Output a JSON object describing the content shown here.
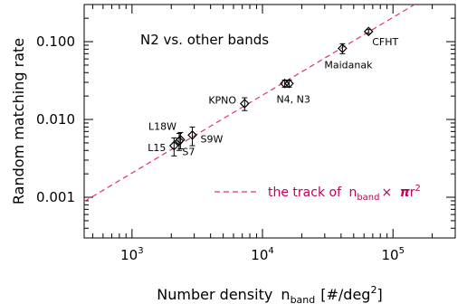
{
  "chart_data": {
    "type": "scatter",
    "title": "N2 vs. other bands",
    "xlabel": "Number density",
    "xlabel_sub": "band",
    "xlabel_unit_pre": "[#/deg",
    "xlabel_unit_sup": "2",
    "xlabel_unit_post": "]",
    "ylabel": "Random matching rate",
    "x_scale": "log",
    "y_scale": "log",
    "xlim": [
      430,
      300000
    ],
    "ylim": [
      0.0003,
      0.3
    ],
    "x_ticks": [
      {
        "value": 1000,
        "base": "10",
        "exp": "3"
      },
      {
        "value": 10000,
        "base": "10",
        "exp": "4"
      },
      {
        "value": 100000,
        "base": "10",
        "exp": "5"
      }
    ],
    "y_ticks": [
      {
        "value": 0.001,
        "label": "0.001"
      },
      {
        "value": 0.01,
        "label": "0.010"
      },
      {
        "value": 0.1,
        "label": "0.100"
      }
    ],
    "points": [
      {
        "label": "CFHT",
        "x": 65000,
        "y": 0.135,
        "yerr": 0.008
      },
      {
        "label": "Maidanak",
        "x": 41000,
        "y": 0.082,
        "yerr": 0.012
      },
      {
        "label": "",
        "x": 14800,
        "y": 0.029,
        "yerr": 0.003
      },
      {
        "label": "N4, N3",
        "x": 16000,
        "y": 0.029,
        "yerr": 0.003
      },
      {
        "label": "KPNO",
        "x": 7300,
        "y": 0.016,
        "yerr": 0.003
      },
      {
        "label": "S9W",
        "x": 2900,
        "y": 0.0063,
        "yerr": 0.0017
      },
      {
        "label": "L18W",
        "x": 2300,
        "y": 0.0053,
        "yerr": 0.0013
      },
      {
        "label": "S7",
        "x": 2350,
        "y": 0.0055,
        "yerr": 0.0013
      },
      {
        "label": "L15",
        "x": 2100,
        "y": 0.0046,
        "yerr": 0.0012
      }
    ],
    "trend_line": {
      "legend": "the track of",
      "legend_var": "n",
      "legend_sub": "band",
      "legend_times": "×",
      "legend_pi": "π",
      "legend_r": "r",
      "legend_sup": "2",
      "color": "#e0307f",
      "slope": 1.0,
      "x_ref": 10000,
      "y_ref": 0.0205
    },
    "grid": false
  }
}
